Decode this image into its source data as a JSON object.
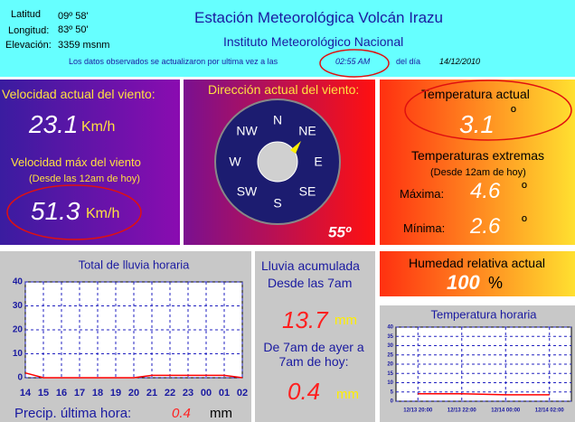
{
  "header": {
    "lat_label": "Latitud",
    "lat": "09º 58'",
    "lon_label": "Longitud:",
    "lon": "83º 50'",
    "elev_label": "Elevación:",
    "elev": "3359 msnm",
    "title": "Estación Meteorológica Volcán Irazu",
    "subtitle": "Instituto Meteorológico Nacional",
    "update_text": "Los datos observados se actualizaron por ultima vez a las",
    "time": "02:55 AM",
    "day_label": "del día",
    "date": "14/12/2010"
  },
  "wind": {
    "current_label": "Velocidad actual del viento:",
    "current_value": 23.1,
    "unit": "Km/h",
    "max_label": "Velocidad máx del viento",
    "max_note": "(Desde las 12am de hoy)",
    "max_value": 51.3,
    "max_unit": "Km/h"
  },
  "direction": {
    "label": "Dirección actual del viento:",
    "N": "N",
    "NE": "NE",
    "E": "E",
    "SE": "SE",
    "S": "S",
    "SW": "SW",
    "W": "W",
    "NW": "NW",
    "degrees": "55º"
  },
  "temperature": {
    "label": "Temperatura actual",
    "value": 3.1,
    "unit": "º",
    "extremes_label": "Temperaturas extremas",
    "extremes_note": "(Desde 12am de hoy)",
    "max_label": "Máxima:",
    "max_value": 4.6,
    "max_unit": "º",
    "min_label": "Mínima:",
    "min_value": 2.6,
    "min_unit": "º"
  },
  "humidity": {
    "label": "Humedad relativa actual",
    "value": 100,
    "unit": "%"
  },
  "rain": {
    "acc_label": "Lluvia acumulada",
    "acc_since": "Desde las 7am",
    "acc_value": 13.7,
    "acc_unit": "mm",
    "prev_label": "De 7am de ayer a 7am de hoy:",
    "prev_value": 0.4,
    "prev_unit": "mm",
    "last_hour_label": "Precip. última hora:",
    "last_hour_value": 0.4,
    "last_hour_unit": "mm"
  },
  "rain_chart": {
    "type": "line",
    "title": "Total de lluvia horaria",
    "categories": [
      "14",
      "15",
      "16",
      "17",
      "18",
      "19",
      "20",
      "21",
      "22",
      "23",
      "00",
      "01",
      "02"
    ],
    "values": [
      2,
      0,
      0,
      0,
      0,
      0,
      0,
      1,
      1,
      1,
      1,
      1,
      0
    ],
    "color": "#ff0000",
    "ylim": [
      0,
      40
    ],
    "yticks": [
      0,
      10,
      20,
      30,
      40
    ],
    "grid": true
  },
  "temp_chart": {
    "type": "line",
    "title": "Temperatura horaria",
    "categories": [
      "12/13 20:00",
      "12/13 22:00",
      "12/14 00:00",
      "12/14 02:00"
    ],
    "values": [
      4,
      4,
      3.5,
      3.5
    ],
    "color": "#ff0000",
    "ylim": [
      0,
      40
    ],
    "yticks": [
      0,
      5,
      10,
      15,
      20,
      25,
      30,
      35,
      40
    ],
    "grid": true
  }
}
